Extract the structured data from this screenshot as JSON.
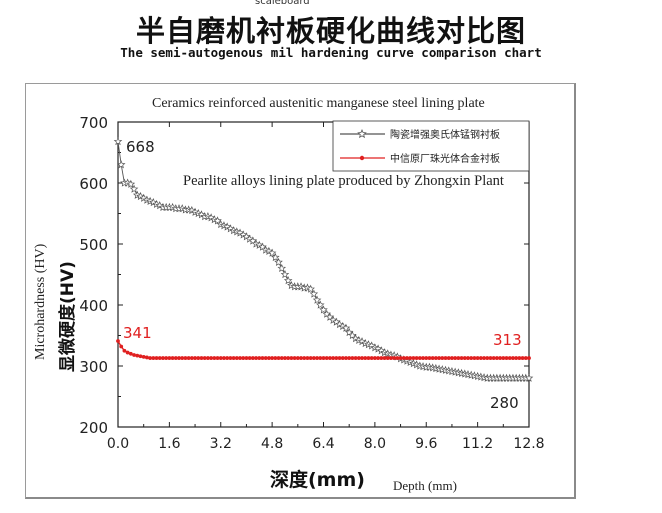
{
  "header": {
    "top_label": "scaleboard",
    "title_cn": "半自磨机衬板硬化曲线对比图",
    "title_en": "The semi-autogenous mil hardening curve comparison chart"
  },
  "chart_data": {
    "type": "line",
    "title": "",
    "annotation_top": "Ceramics reinforced austenitic manganese steel lining plate",
    "annotation_mid": "Pearlite alloys lining plate produced by Zhongxin Plant",
    "xlabel_cn": "深度(mm)",
    "xlabel_en": "Depth (mm)",
    "ylabel_en": "Microhardness (HV)",
    "ylabel_cn": "显微硬度(HV)",
    "xlim": [
      0.0,
      12.8
    ],
    "ylim": [
      200,
      700
    ],
    "x_ticks": [
      "0.0",
      "1.6",
      "3.2",
      "4.8",
      "6.4",
      "8.0",
      "9.6",
      "11.2",
      "12.8"
    ],
    "y_ticks": [
      "200",
      "300",
      "400",
      "500",
      "600",
      "700"
    ],
    "legend_position": "top-right",
    "grid": false,
    "series": [
      {
        "name": "陶瓷增强奥氏体锰钢衬板",
        "color": "#555555",
        "marker": "star",
        "x": [
          0.0,
          0.1,
          0.2,
          0.3,
          0.4,
          0.5,
          0.6,
          0.7,
          0.8,
          0.9,
          1.0,
          1.1,
          1.2,
          1.3,
          1.4,
          1.5,
          1.6,
          1.7,
          1.8,
          1.9,
          2.0,
          2.1,
          2.2,
          2.3,
          2.4,
          2.5,
          2.6,
          2.7,
          2.8,
          2.9,
          3.0,
          3.1,
          3.2,
          3.3,
          3.4,
          3.5,
          3.6,
          3.7,
          3.8,
          3.9,
          4.0,
          4.1,
          4.2,
          4.3,
          4.4,
          4.5,
          4.6,
          4.7,
          4.8,
          4.9,
          5.0,
          5.1,
          5.2,
          5.3,
          5.4,
          5.5,
          5.6,
          5.7,
          5.8,
          5.9,
          6.0,
          6.1,
          6.2,
          6.3,
          6.4,
          6.5,
          6.6,
          6.7,
          6.8,
          6.9,
          7.0,
          7.1,
          7.2,
          7.3,
          7.4,
          7.5,
          7.6,
          7.7,
          7.8,
          7.9,
          8.0,
          8.1,
          8.2,
          8.3,
          8.4,
          8.5,
          8.6,
          8.7,
          8.8,
          8.9,
          9.0,
          9.1,
          9.2,
          9.3,
          9.4,
          9.5,
          9.6,
          9.7,
          9.8,
          9.9,
          10.0,
          10.1,
          10.2,
          10.3,
          10.4,
          10.5,
          10.6,
          10.7,
          10.8,
          10.9,
          11.0,
          11.1,
          11.2,
          11.3,
          11.4,
          11.5,
          11.6,
          11.7,
          11.8,
          11.9,
          12.0,
          12.1,
          12.2,
          12.3,
          12.4,
          12.5,
          12.6,
          12.7,
          12.8
        ],
        "y": [
          668,
          630,
          600,
          600,
          598,
          590,
          580,
          578,
          575,
          572,
          570,
          568,
          565,
          563,
          560,
          560,
          560,
          560,
          558,
          558,
          558,
          556,
          556,
          555,
          552,
          550,
          548,
          545,
          545,
          543,
          540,
          538,
          532,
          530,
          528,
          525,
          522,
          520,
          518,
          515,
          512,
          508,
          505,
          500,
          498,
          495,
          490,
          488,
          485,
          478,
          470,
          460,
          450,
          440,
          432,
          430,
          430,
          430,
          428,
          428,
          426,
          418,
          408,
          400,
          392,
          385,
          380,
          375,
          372,
          368,
          365,
          362,
          355,
          350,
          345,
          342,
          340,
          337,
          335,
          333,
          330,
          328,
          325,
          322,
          320,
          318,
          317,
          315,
          312,
          310,
          308,
          306,
          304,
          302,
          300,
          299,
          298,
          298,
          297,
          296,
          295,
          294,
          293,
          292,
          291,
          290,
          289,
          288,
          287,
          286,
          285,
          284,
          283,
          282,
          281,
          280,
          280,
          280,
          280,
          280,
          280,
          280,
          280,
          280,
          280,
          280,
          280,
          280,
          280
        ]
      },
      {
        "name": "中信原厂珠光体合金衬板",
        "color": "#e02020",
        "marker": "dot",
        "x": [
          0.0,
          0.1,
          0.2,
          0.3,
          0.4,
          0.5,
          0.6,
          0.7,
          0.8,
          0.9,
          1.0,
          1.1,
          1.2,
          1.3,
          1.4,
          1.5,
          1.6,
          1.7,
          1.8,
          1.9,
          2.0,
          2.1,
          2.2,
          2.3,
          2.4,
          2.5,
          2.6,
          2.7,
          2.8,
          2.9,
          3.0,
          3.1,
          3.2,
          3.3,
          3.4,
          3.5,
          3.6,
          3.7,
          3.8,
          3.9,
          4.0,
          4.1,
          4.2,
          4.3,
          4.4,
          4.5,
          4.6,
          4.7,
          4.8,
          4.9,
          5.0,
          5.1,
          5.2,
          5.3,
          5.4,
          5.5,
          5.6,
          5.7,
          5.8,
          5.9,
          6.0,
          6.1,
          6.2,
          6.3,
          6.4,
          6.5,
          6.6,
          6.7,
          6.8,
          6.9,
          7.0,
          7.1,
          7.2,
          7.3,
          7.4,
          7.5,
          7.6,
          7.7,
          7.8,
          7.9,
          8.0,
          8.1,
          8.2,
          8.3,
          8.4,
          8.5,
          8.6,
          8.7,
          8.8,
          8.9,
          9.0,
          9.1,
          9.2,
          9.3,
          9.4,
          9.5,
          9.6,
          9.7,
          9.8,
          9.9,
          10.0,
          10.1,
          10.2,
          10.3,
          10.4,
          10.5,
          10.6,
          10.7,
          10.8,
          10.9,
          11.0,
          11.1,
          11.2,
          11.3,
          11.4,
          11.5,
          11.6,
          11.7,
          11.8,
          11.9,
          12.0,
          12.1,
          12.2,
          12.3,
          12.4,
          12.5,
          12.6,
          12.7,
          12.8
        ],
        "y": [
          341,
          332,
          325,
          322,
          320,
          318,
          317,
          316,
          315,
          314,
          313,
          313,
          313,
          313,
          313,
          313,
          313,
          313,
          313,
          313,
          313,
          313,
          313,
          313,
          313,
          313,
          313,
          313,
          313,
          313,
          313,
          313,
          313,
          313,
          313,
          313,
          313,
          313,
          313,
          313,
          313,
          313,
          313,
          313,
          313,
          313,
          313,
          313,
          313,
          313,
          313,
          313,
          313,
          313,
          313,
          313,
          313,
          313,
          313,
          313,
          313,
          313,
          313,
          313,
          313,
          313,
          313,
          313,
          313,
          313,
          313,
          313,
          313,
          313,
          313,
          313,
          313,
          313,
          313,
          313,
          313,
          313,
          313,
          313,
          313,
          313,
          313,
          313,
          313,
          313,
          313,
          313,
          313,
          313,
          313,
          313,
          313,
          313,
          313,
          313,
          313,
          313,
          313,
          313,
          313,
          313,
          313,
          313,
          313,
          313,
          313,
          313,
          313,
          313,
          313,
          313,
          313,
          313,
          313,
          313,
          313,
          313,
          313,
          313,
          313,
          313,
          313,
          313,
          313
        ]
      }
    ],
    "data_labels": [
      {
        "text": "668",
        "color": "#222222"
      },
      {
        "text": "341",
        "color": "#e02020"
      },
      {
        "text": "313",
        "color": "#e02020"
      },
      {
        "text": "280",
        "color": "#222222"
      }
    ]
  }
}
